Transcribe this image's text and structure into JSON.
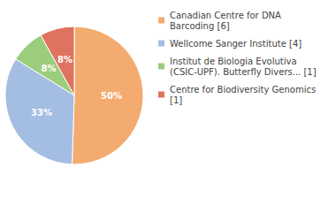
{
  "chart_data": {
    "type": "pie",
    "categories": [
      "Canadian Centre for DNA Barcoding [6]",
      "Wellcome Sanger Institute [4]",
      "Institut de Biologia Evolutiva (CSIC-UPF). Butterfly Divers... [1]",
      "Centre for Biodiversity Genomics [1]"
    ],
    "values": [
      50,
      33,
      8,
      8
    ],
    "value_labels": [
      "50%",
      "33%",
      "8%",
      "8%"
    ],
    "colors": [
      "#f4ab6f",
      "#a4bde2",
      "#9ccd7d",
      "#e0735f"
    ],
    "data_labels": true,
    "legend": "upper right"
  }
}
